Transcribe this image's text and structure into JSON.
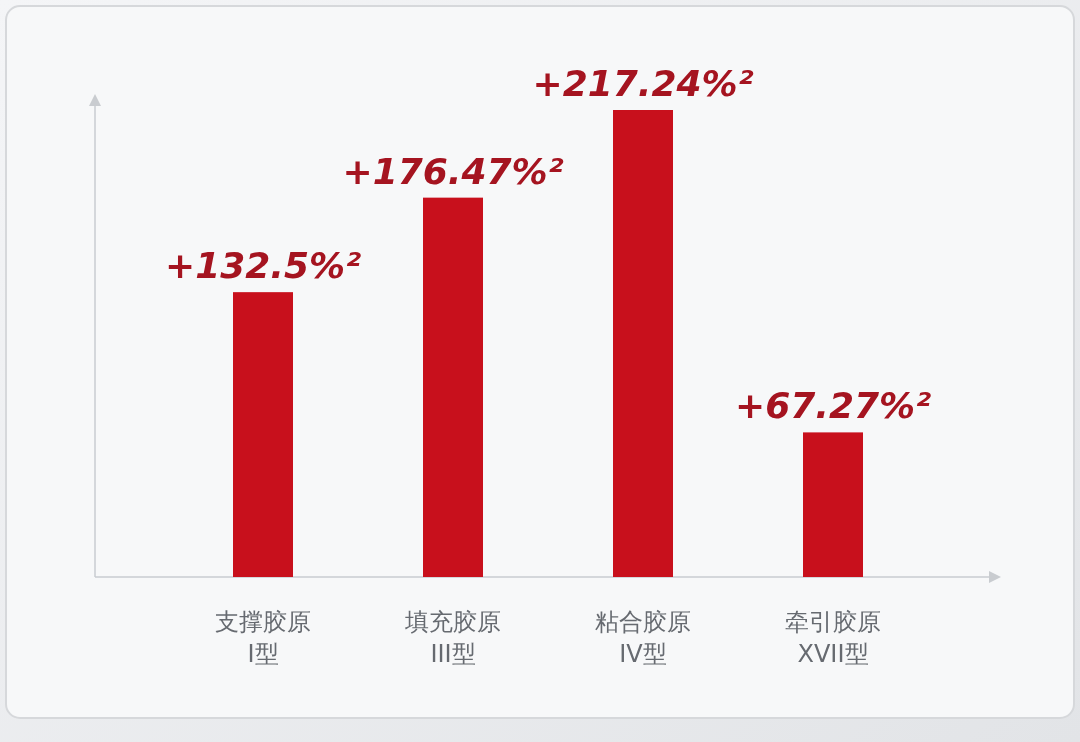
{
  "chart_data": {
    "type": "bar",
    "categories": [
      "支撑胶原\nI型",
      "填充胶原\nIII型",
      "粘合胶原\nIV型",
      "牵引胶原\nXVII型"
    ],
    "values": [
      132.5,
      176.47,
      217.24,
      67.27
    ],
    "value_labels": [
      "+132.5%²",
      "+176.47%²",
      "+217.24%²",
      "+67.27%²"
    ],
    "color": "#c8101c"
  }
}
